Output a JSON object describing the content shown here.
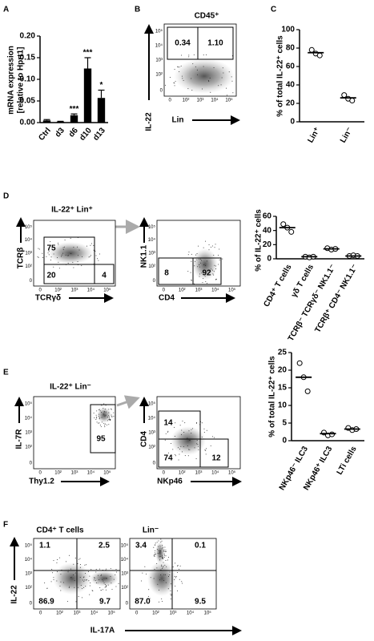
{
  "panel_labels": [
    "A",
    "B",
    "C",
    "D",
    "E",
    "F"
  ],
  "flow_ticks": [
    "0",
    "10²",
    "10³",
    "10⁴",
    "10⁵"
  ],
  "flow_plots": [
    {
      "title": "CD45⁺",
      "xlabel": "Lin",
      "ylabel": "IL-22",
      "gates": [
        "0.34",
        "1.10"
      ]
    },
    {
      "title": "IL-22⁺ Lin⁺",
      "xlabel": "TCRγδ",
      "ylabel": "TCRβ",
      "gates": [
        "75",
        "20",
        "4"
      ]
    },
    {
      "xlabel": "CD4",
      "ylabel": "NK1.1",
      "gates": [
        "8",
        "92"
      ]
    },
    {
      "title": "IL-22⁺ Lin⁻",
      "xlabel": "Thy1.2",
      "ylabel": "IL-7R",
      "gates": [
        "95"
      ]
    },
    {
      "xlabel": "NKp46",
      "ylabel": "CD4",
      "gates": [
        "14",
        "74",
        "12"
      ]
    },
    {
      "title": "CD4⁺ T cells",
      "xlabel": "IL-17A",
      "ylabel": "IL-22",
      "gates": [
        "1.1",
        "2.5",
        "86.9",
        "9.7"
      ]
    },
    {
      "title": "Lin⁻",
      "gates": [
        "3.4",
        "0.1",
        "87.0",
        "9.5"
      ]
    }
  ],
  "chart_data": [
    {
      "type": "bar",
      "ylabel": [
        "mRNA expression",
        "[relative to Hprt1]"
      ],
      "categories": [
        "Ctrl",
        "d3",
        "d6",
        "d10",
        "d13"
      ],
      "values": [
        0.005,
        0.002,
        0.017,
        0.125,
        0.057
      ],
      "errors": [
        0.002,
        0.001,
        0.003,
        0.025,
        0.018
      ],
      "annotations": [
        null,
        null,
        "***",
        "***",
        "*"
      ],
      "color": "#000000",
      "ylim": [
        0,
        0.2
      ],
      "yticks": [
        {
          "value": 0,
          "label": "0.00"
        },
        0.05,
        {
          "value": 0.1,
          "label": "0.10"
        },
        0.15,
        {
          "value": 0.2,
          "label": "0.20"
        }
      ]
    },
    {
      "type": "dot",
      "ylabel": "% of total IL-22⁺ cells",
      "categories": [
        "Lin⁺",
        "Lin⁻"
      ],
      "points": [
        [
          78,
          74,
          72
        ],
        [
          29,
          25,
          23
        ]
      ],
      "means": [
        75,
        26
      ],
      "ylim": [
        0,
        100
      ],
      "yticks": [
        0,
        20,
        40,
        60,
        80,
        100
      ]
    },
    {
      "type": "dot",
      "ylabel": "% of IL-22⁺ cells",
      "categories": [
        "CD4⁺ T cells",
        "γδ T cells",
        "TCRβ⁻ TCRγδ⁻ NK1.1⁻",
        "TCRβ⁺ CD4⁻ NK1.1⁻"
      ],
      "points": [
        [
          49,
          44,
          38
        ],
        [
          3,
          2,
          3
        ],
        [
          15,
          13,
          14
        ],
        [
          4,
          5,
          4
        ]
      ],
      "means": [
        44,
        3,
        14,
        4
      ],
      "ylim": [
        0,
        60
      ],
      "yticks": [
        0,
        20,
        40,
        60
      ]
    },
    {
      "type": "dot",
      "ylabel": "% of  total IL-22⁺ cells",
      "categories": [
        "NKp46⁻ ILC3",
        "NKp46⁺ ILC3",
        "LTi cells"
      ],
      "points": [
        [
          22,
          18,
          14
        ],
        [
          2.3,
          1.5,
          1.8
        ],
        [
          3.6,
          3,
          3.3
        ]
      ],
      "means": [
        18,
        2,
        3.3
      ],
      "ylim": [
        0,
        25
      ],
      "yticks": [
        0,
        5,
        10,
        15,
        20,
        25
      ]
    }
  ]
}
